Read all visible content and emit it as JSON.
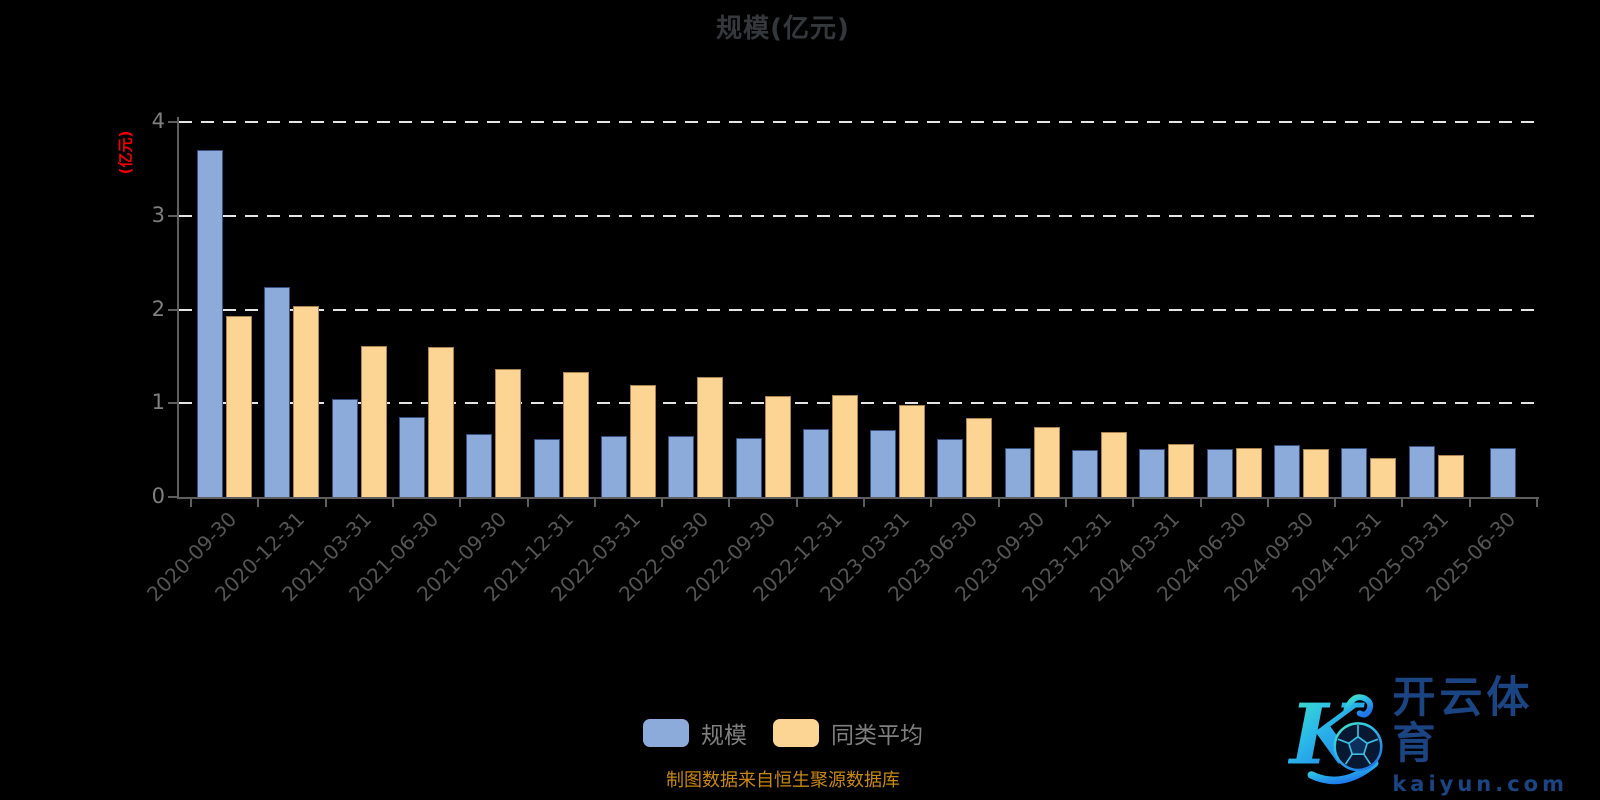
{
  "title": "规模(亿元)",
  "y_axis": {
    "unit_label": "(亿元)",
    "ticks": [
      "0",
      "1",
      "2",
      "3",
      "4"
    ],
    "unit_label_color": "#f00000"
  },
  "legend": {
    "items": [
      {
        "label": "规模",
        "color": "#8cabdb"
      },
      {
        "label": "同类平均",
        "color": "#fcd594"
      }
    ]
  },
  "source_note": "制图数据来自恒生聚源数据库",
  "watermark": {
    "k_letter": "K",
    "brand_cn": "开云体育",
    "brand_url": "kaiyun.com",
    "brand_color": "#1b4483"
  },
  "colors": {
    "background": "#000000",
    "title": "#34383d",
    "axis": "#5e5e5e",
    "gridline": "#e4e4e4",
    "y_label": "#7f7f7f",
    "x_label": "#555555",
    "series_blue": "#8cabdb",
    "series_orange": "#fcd594",
    "source_text": "#c8870e"
  },
  "chart_data": {
    "type": "bar",
    "title": "规模(亿元)",
    "ylabel": "(亿元)",
    "xlabel": "",
    "ylim": [
      0,
      4
    ],
    "grid": "dashed-horizontal",
    "legend_position": "bottom-center",
    "categories": [
      "2020-09-30",
      "2020-12-31",
      "2021-03-31",
      "2021-06-30",
      "2021-09-30",
      "2021-12-31",
      "2022-03-31",
      "2022-06-30",
      "2022-09-30",
      "2022-12-31",
      "2023-03-31",
      "2023-06-30",
      "2023-09-30",
      "2023-12-31",
      "2024-03-31",
      "2024-06-30",
      "2024-09-30",
      "2024-12-31",
      "2025-03-31",
      "2025-06-30"
    ],
    "series": [
      {
        "name": "规模",
        "color": "#8cabdb",
        "values": [
          3.7,
          2.24,
          1.05,
          0.85,
          0.67,
          0.62,
          0.65,
          0.65,
          0.63,
          0.73,
          0.72,
          0.62,
          0.52,
          0.5,
          0.51,
          0.51,
          0.55,
          0.52,
          0.54,
          0.52
        ]
      },
      {
        "name": "同类平均",
        "color": "#fcd594",
        "values": [
          1.93,
          2.04,
          1.61,
          1.6,
          1.37,
          1.33,
          1.2,
          1.28,
          1.08,
          1.09,
          0.98,
          0.84,
          0.75,
          0.69,
          0.57,
          0.52,
          0.51,
          0.42,
          0.45,
          null
        ]
      }
    ]
  }
}
